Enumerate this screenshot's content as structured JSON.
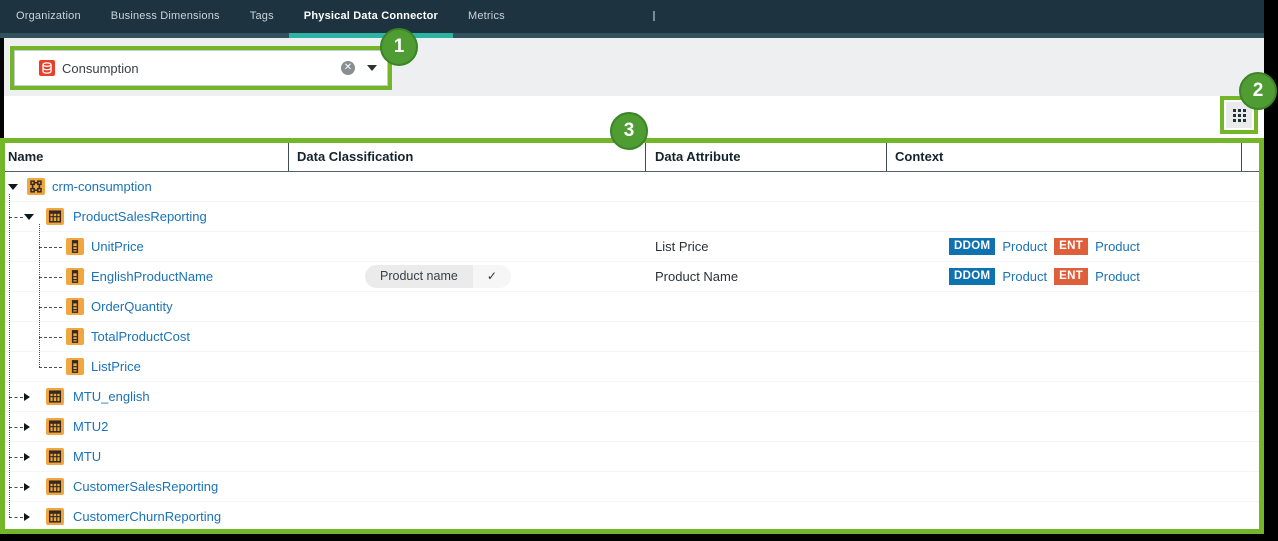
{
  "nav": {
    "tabs": [
      {
        "label": "Organization",
        "active": false
      },
      {
        "label": "Business Dimensions",
        "active": false
      },
      {
        "label": "Tags",
        "active": false
      },
      {
        "label": "Physical Data Connector",
        "active": true
      },
      {
        "label": "Metrics",
        "active": false
      }
    ],
    "active_underline_color": "#2db3a3"
  },
  "connector_select": {
    "value": "Consumption",
    "icon": "database-icon",
    "clear_glyph": "✕"
  },
  "toolbar": {
    "grid_button_icon": "grid-icon"
  },
  "annotations": {
    "badge1": "1",
    "badge2": "2",
    "badge3": "3",
    "accent_color": "#74b629",
    "badge_color": "#4f9c33"
  },
  "table": {
    "columns": [
      "Name",
      "Data Classification",
      "Data Attribute",
      "Context"
    ],
    "check_glyph": "✓",
    "link_color": "#1a72b8",
    "icon_color": "#f2a640",
    "rows": [
      {
        "name": "crm-consumption",
        "level": 0,
        "icon": "schema",
        "state": "expanded"
      },
      {
        "name": "ProductSalesReporting",
        "level": 1,
        "icon": "table",
        "state": "expanded"
      },
      {
        "name": "UnitPrice",
        "level": 2,
        "icon": "column",
        "state": "leaf",
        "data_attribute": "List Price",
        "context": [
          {
            "badge": "DDOM",
            "badge_color": "#0e71b0",
            "link": "Product"
          },
          {
            "badge": "ENT",
            "badge_color": "#e05f3b",
            "link": "Product"
          }
        ]
      },
      {
        "name": "EnglishProductName",
        "level": 2,
        "icon": "column",
        "state": "leaf",
        "classification": {
          "label": "Product name",
          "checked": true
        },
        "data_attribute": "Product Name",
        "context": [
          {
            "badge": "DDOM",
            "badge_color": "#0e71b0",
            "link": "Product"
          },
          {
            "badge": "ENT",
            "badge_color": "#e05f3b",
            "link": "Product"
          }
        ]
      },
      {
        "name": "OrderQuantity",
        "level": 2,
        "icon": "column",
        "state": "leaf"
      },
      {
        "name": "TotalProductCost",
        "level": 2,
        "icon": "column",
        "state": "leaf"
      },
      {
        "name": "ListPrice",
        "level": 2,
        "icon": "column",
        "state": "leaf"
      },
      {
        "name": "MTU_english",
        "level": 1,
        "icon": "table",
        "state": "collapsed"
      },
      {
        "name": "MTU2",
        "level": 1,
        "icon": "table",
        "state": "collapsed"
      },
      {
        "name": "MTU",
        "level": 1,
        "icon": "table",
        "state": "collapsed"
      },
      {
        "name": "CustomerSalesReporting",
        "level": 1,
        "icon": "table",
        "state": "collapsed"
      },
      {
        "name": "CustomerChurnReporting",
        "level": 1,
        "icon": "table",
        "state": "collapsed"
      }
    ]
  }
}
